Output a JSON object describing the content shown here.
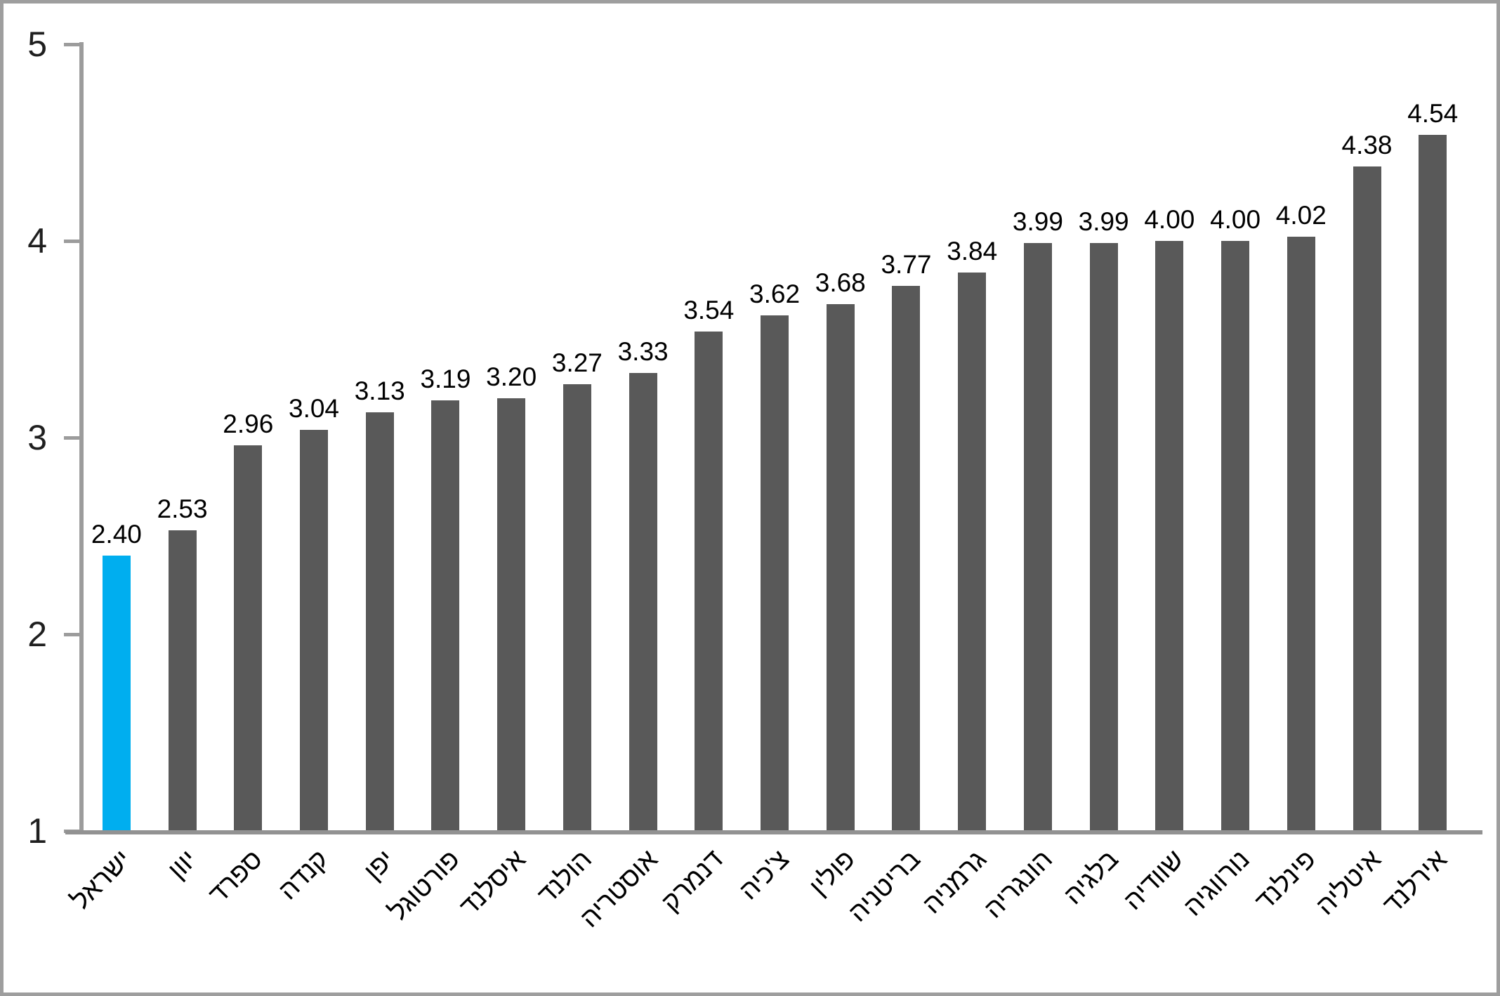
{
  "frame": {
    "background": "#ffffff",
    "border_color": "#9e9e9e"
  },
  "chart_data": {
    "type": "bar",
    "title": "",
    "xlabel": "",
    "ylabel": "",
    "ylim": [
      1,
      5
    ],
    "yticks": [
      "1",
      "2",
      "3",
      "4",
      "5"
    ],
    "grid": false,
    "legend": "none",
    "bar_color": "#595959",
    "highlight_color": "#00AEEF",
    "highlight_index": 0,
    "axis_color": "#9c9c9c",
    "categories": [
      "ישראל",
      "יוון",
      "ספרד",
      "קנדה",
      "יפן",
      "פורטוגל",
      "איסלנד",
      "הולנד",
      "אוסטריה",
      "דנמרק",
      "צ'כיה",
      "פולין",
      "בריטניה",
      "גרמניה",
      "הונגריה",
      "בלגיה",
      "שוודיה",
      "נורווגיה",
      "פינלנד",
      "איטליה",
      "אירלנד"
    ],
    "values": [
      2.4,
      2.53,
      2.96,
      3.04,
      3.13,
      3.19,
      3.2,
      3.27,
      3.33,
      3.54,
      3.62,
      3.68,
      3.77,
      3.84,
      3.99,
      3.99,
      4.0,
      4.0,
      4.02,
      4.38,
      4.54
    ],
    "value_labels": [
      "2.40",
      "2.53",
      "2.96",
      "3.04",
      "3.13",
      "3.19",
      "3.20",
      "3.27",
      "3.33",
      "3.54",
      "3.62",
      "3.68",
      "3.77",
      "3.84",
      "3.99",
      "3.99",
      "4.00",
      "4.00",
      "4.02",
      "4.38",
      "4.54"
    ]
  }
}
